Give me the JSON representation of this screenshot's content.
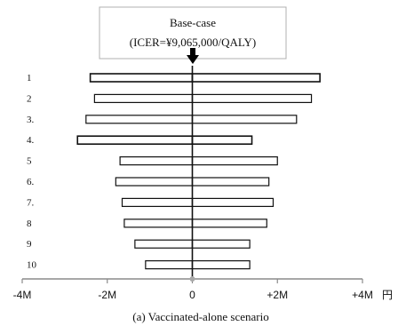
{
  "chart_data": {
    "type": "bar",
    "orientation": "horizontal",
    "title": "",
    "caption": "(a) Vaccinated-alone scenario",
    "base_case_label_line1": "Base-case",
    "base_case_label_line2": "(ICER=¥9,065,000/QALY)",
    "base_case_value": 0,
    "categories": [
      "1",
      "2",
      "3.",
      "4.",
      "5",
      "6.",
      "7.",
      "8",
      "9",
      "10"
    ],
    "bars": [
      {
        "low": -2.4,
        "high": 3.0
      },
      {
        "low": -2.3,
        "high": 2.8
      },
      {
        "low": -2.5,
        "high": 2.45
      },
      {
        "low": -2.7,
        "high": 1.4
      },
      {
        "low": -1.7,
        "high": 2.0
      },
      {
        "low": -1.8,
        "high": 1.8
      },
      {
        "low": -1.65,
        "high": 1.9
      },
      {
        "low": -1.6,
        "high": 1.75
      },
      {
        "low": -1.35,
        "high": 1.35
      },
      {
        "low": -1.1,
        "high": 1.35
      }
    ],
    "xlim": [
      -4,
      4
    ],
    "x_ticks": [
      -4,
      -2,
      0,
      2,
      4
    ],
    "x_tick_labels": [
      "-4M",
      "-2M",
      "0",
      "+2M",
      "+4M"
    ],
    "x_unit": "円",
    "grid": false
  }
}
